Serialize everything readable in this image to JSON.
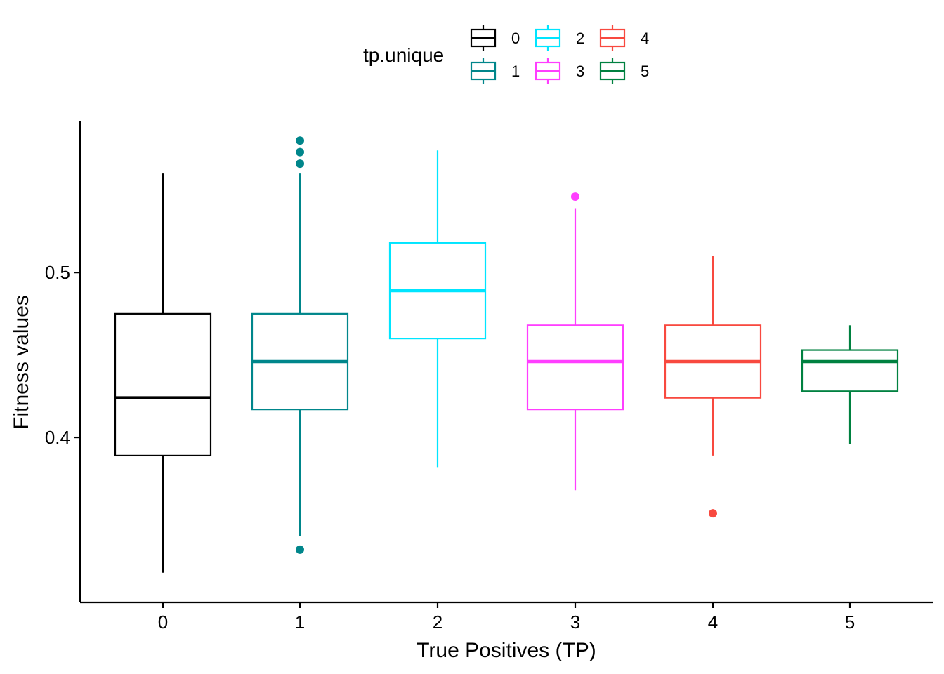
{
  "chart_data": {
    "type": "boxplot",
    "xlabel": "True Positives (TP)",
    "ylabel": "Fitness values",
    "ylim": [
      0.3,
      0.592
    ],
    "yticks": [
      0.4,
      0.5
    ],
    "ytick_labels": [
      "0.4",
      "0.5"
    ],
    "categories": [
      "0",
      "1",
      "2",
      "3",
      "4",
      "5"
    ],
    "grid": false,
    "legend": {
      "title": "tp.unique",
      "position": "top",
      "entries": [
        "0",
        "1",
        "2",
        "3",
        "4",
        "5"
      ]
    },
    "series": [
      {
        "name": "0",
        "color": "#000000",
        "whisker_low": 0.318,
        "q1": 0.389,
        "median": 0.424,
        "q3": 0.475,
        "whisker_high": 0.56,
        "outliers": []
      },
      {
        "name": "1",
        "color": "#00868B",
        "whisker_low": 0.34,
        "q1": 0.417,
        "median": 0.446,
        "q3": 0.475,
        "whisker_high": 0.56,
        "outliers": [
          0.58,
          0.573,
          0.566,
          0.332
        ]
      },
      {
        "name": "2",
        "color": "#00E5FF",
        "whisker_low": 0.382,
        "q1": 0.46,
        "median": 0.489,
        "q3": 0.518,
        "whisker_high": 0.574,
        "outliers": []
      },
      {
        "name": "3",
        "color": "#FF3EFF",
        "whisker_low": 0.368,
        "q1": 0.417,
        "median": 0.446,
        "q3": 0.468,
        "whisker_high": 0.539,
        "outliers": [
          0.546
        ]
      },
      {
        "name": "4",
        "color": "#F8493F",
        "whisker_low": 0.389,
        "q1": 0.424,
        "median": 0.446,
        "q3": 0.468,
        "whisker_high": 0.51,
        "outliers": [
          0.354
        ]
      },
      {
        "name": "5",
        "color": "#008140",
        "whisker_low": 0.396,
        "q1": 0.428,
        "median": 0.446,
        "q3": 0.453,
        "whisker_high": 0.468,
        "outliers": []
      }
    ]
  }
}
